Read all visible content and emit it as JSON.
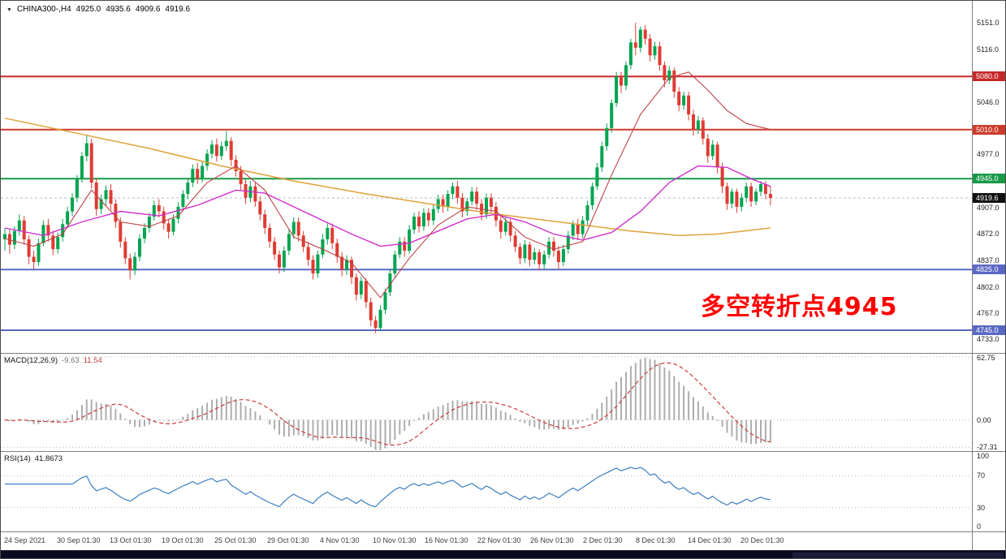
{
  "window": {
    "dropdown_icon": "▼",
    "symbol_info": {
      "symbol": "CHINA300-,H4",
      "open": "4925.0",
      "high": "4935.6",
      "low": "4909.6",
      "close": "4919.6"
    }
  },
  "annotation": {
    "text": "多空转折点4945",
    "color": "#FF0000"
  },
  "main_panel": {
    "axis_ticks": [
      "5151.0",
      "5116.0",
      "5046.0",
      "4977.0",
      "4907.0",
      "4872.0",
      "4837.0",
      "4802.0",
      "4767.0",
      "4733.0"
    ],
    "price_lines": [
      {
        "value": 5080.0,
        "label": "5080.0",
        "color": "#c62828"
      },
      {
        "value": 5010.0,
        "label": "5010.0",
        "color": "#cd3b2a"
      },
      {
        "value": 4945.0,
        "label": "4945.0",
        "color": "#169a47"
      },
      {
        "value": 4825.0,
        "label": "4825.0",
        "color": "#5a68c4"
      },
      {
        "value": 4745.0,
        "label": "4745.0",
        "color": "#5a68c4"
      }
    ],
    "current_price": {
      "value": 4919.6,
      "label": "4919.6",
      "color": "#111111"
    }
  },
  "macd_panel": {
    "label": "MACD(12,26,9)",
    "value_main": "-9.63",
    "value_signal": "11.54",
    "range": [
      -31,
      66
    ],
    "axis_ticks": [
      {
        "value": 62.75,
        "label": "62.75"
      },
      {
        "value": 0,
        "label": "0.00"
      },
      {
        "value": -27.31,
        "label": "-27.31"
      }
    ]
  },
  "rsi_panel": {
    "label": "RSI(14)",
    "value": "41.8673",
    "levels": [
      70,
      30
    ],
    "axis_ticks": [
      {
        "value": 100,
        "label": "100"
      },
      {
        "value": 70,
        "label": "70"
      },
      {
        "value": 30,
        "label": "30"
      },
      {
        "value": 0,
        "label": "0"
      }
    ]
  },
  "x_axis": {
    "labels": [
      "24 Sep 2021",
      "30 Sep 01:30",
      "13 Oct 01:30",
      "19 Oct 01:30",
      "25 Oct 01:30",
      "29 Oct 01:30",
      "4 Nov 01:30",
      "10 Nov 01:30",
      "16 Nov 01:30",
      "22 Nov 01:30",
      "26 Nov 01:30",
      "2 Dec 01:30",
      "8 Dec 01:30",
      "14 Dec 01:30",
      "20 Dec 01:30"
    ]
  },
  "chart_data": {
    "type": "candlestick",
    "symbol": "CHINA300-",
    "timeframe": "H4",
    "title": "CHINA300-,H4",
    "price_range": [
      4715,
      5180
    ],
    "colors": {
      "up": "#00a44f",
      "down": "#df3b33",
      "macd_hist": "#adadad",
      "macd_signal": "#cc3b3b",
      "rsi_line": "#3a7fc1",
      "grid_dot": "#b8b8b8",
      "current_price_line": "#bbbbbb"
    },
    "ohlc": [
      [
        4865,
        4880,
        4850,
        4872
      ],
      [
        4872,
        4878,
        4846,
        4858
      ],
      [
        4858,
        4882,
        4852,
        4876
      ],
      [
        4876,
        4898,
        4870,
        4890
      ],
      [
        4890,
        4896,
        4858,
        4865
      ],
      [
        4865,
        4870,
        4832,
        4842
      ],
      [
        4842,
        4850,
        4826,
        4835
      ],
      [
        4835,
        4866,
        4830,
        4860
      ],
      [
        4860,
        4890,
        4856,
        4884
      ],
      [
        4884,
        4892,
        4862,
        4870
      ],
      [
        4870,
        4876,
        4844,
        4852
      ],
      [
        4852,
        4874,
        4846,
        4868
      ],
      [
        4868,
        4892,
        4862,
        4885
      ],
      [
        4885,
        4908,
        4880,
        4902
      ],
      [
        4902,
        4926,
        4896,
        4920
      ],
      [
        4920,
        4950,
        4914,
        4945
      ],
      [
        4945,
        4980,
        4940,
        4975
      ],
      [
        4975,
        5002,
        4968,
        4992
      ],
      [
        4992,
        4998,
        4932,
        4940
      ],
      [
        4940,
        4946,
        4896,
        4905
      ],
      [
        4905,
        4924,
        4898,
        4918
      ],
      [
        4918,
        4936,
        4910,
        4930
      ],
      [
        4930,
        4938,
        4904,
        4912
      ],
      [
        4912,
        4918,
        4880,
        4888
      ],
      [
        4888,
        4894,
        4854,
        4862
      ],
      [
        4862,
        4868,
        4832,
        4840
      ],
      [
        4840,
        4846,
        4812,
        4824
      ],
      [
        4824,
        4848,
        4818,
        4842
      ],
      [
        4842,
        4872,
        4836,
        4866
      ],
      [
        4866,
        4886,
        4860,
        4880
      ],
      [
        4880,
        4900,
        4874,
        4895
      ],
      [
        4895,
        4916,
        4890,
        4910
      ],
      [
        4910,
        4918,
        4894,
        4902
      ],
      [
        4902,
        4908,
        4878,
        4886
      ],
      [
        4886,
        4892,
        4866,
        4875
      ],
      [
        4875,
        4898,
        4870,
        4892
      ],
      [
        4892,
        4914,
        4886,
        4908
      ],
      [
        4908,
        4930,
        4902,
        4925
      ],
      [
        4925,
        4946,
        4918,
        4940
      ],
      [
        4940,
        4964,
        4934,
        4958
      ],
      [
        4958,
        4966,
        4938,
        4945
      ],
      [
        4945,
        4968,
        4940,
        4962
      ],
      [
        4962,
        4984,
        4956,
        4978
      ],
      [
        4978,
        4996,
        4972,
        4990
      ],
      [
        4990,
        4998,
        4968,
        4975
      ],
      [
        4975,
        4994,
        4970,
        4988
      ],
      [
        4988,
        5008,
        4982,
        4995
      ],
      [
        4995,
        5000,
        4962,
        4970
      ],
      [
        4970,
        4976,
        4948,
        4955
      ],
      [
        4955,
        4962,
        4930,
        4938
      ],
      [
        4938,
        4944,
        4912,
        4920
      ],
      [
        4920,
        4942,
        4914,
        4935
      ],
      [
        4935,
        4940,
        4908,
        4915
      ],
      [
        4915,
        4922,
        4890,
        4898
      ],
      [
        4898,
        4904,
        4872,
        4880
      ],
      [
        4880,
        4886,
        4854,
        4862
      ],
      [
        4862,
        4868,
        4838,
        4845
      ],
      [
        4845,
        4850,
        4820,
        4828
      ],
      [
        4828,
        4856,
        4822,
        4850
      ],
      [
        4850,
        4878,
        4844,
        4872
      ],
      [
        4872,
        4894,
        4866,
        4888
      ],
      [
        4888,
        4894,
        4862,
        4870
      ],
      [
        4870,
        4876,
        4848,
        4855
      ],
      [
        4855,
        4862,
        4830,
        4838
      ],
      [
        4838,
        4844,
        4812,
        4820
      ],
      [
        4820,
        4850,
        4814,
        4845
      ],
      [
        4845,
        4872,
        4840,
        4865
      ],
      [
        4865,
        4886,
        4858,
        4880
      ],
      [
        4880,
        4886,
        4852,
        4860
      ],
      [
        4860,
        4866,
        4834,
        4842
      ],
      [
        4842,
        4848,
        4816,
        4825
      ],
      [
        4825,
        4844,
        4818,
        4838
      ],
      [
        4838,
        4842,
        4806,
        4815
      ],
      [
        4815,
        4820,
        4784,
        4792
      ],
      [
        4792,
        4816,
        4786,
        4810
      ],
      [
        4810,
        4814,
        4774,
        4782
      ],
      [
        4782,
        4788,
        4750,
        4758
      ],
      [
        4758,
        4764,
        4741,
        4748
      ],
      [
        4748,
        4778,
        4744,
        4772
      ],
      [
        4772,
        4800,
        4766,
        4795
      ],
      [
        4795,
        4826,
        4790,
        4820
      ],
      [
        4820,
        4850,
        4814,
        4845
      ],
      [
        4845,
        4868,
        4840,
        4862
      ],
      [
        4862,
        4868,
        4842,
        4850
      ],
      [
        4850,
        4884,
        4846,
        4878
      ],
      [
        4878,
        4900,
        4872,
        4895
      ],
      [
        4895,
        4902,
        4874,
        4882
      ],
      [
        4882,
        4906,
        4876,
        4900
      ],
      [
        4900,
        4906,
        4882,
        4890
      ],
      [
        4890,
        4912,
        4884,
        4905
      ],
      [
        4905,
        4924,
        4900,
        4918
      ],
      [
        4918,
        4924,
        4900,
        4908
      ],
      [
        4908,
        4930,
        4902,
        4925
      ],
      [
        4925,
        4940,
        4918,
        4935
      ],
      [
        4935,
        4942,
        4912,
        4920
      ],
      [
        4920,
        4926,
        4894,
        4902
      ],
      [
        4902,
        4920,
        4896,
        4915
      ],
      [
        4915,
        4934,
        4910,
        4928
      ],
      [
        4928,
        4934,
        4904,
        4912
      ],
      [
        4912,
        4918,
        4890,
        4898
      ],
      [
        4898,
        4926,
        4892,
        4920
      ],
      [
        4920,
        4926,
        4900,
        4908
      ],
      [
        4908,
        4914,
        4882,
        4890
      ],
      [
        4890,
        4896,
        4866,
        4875
      ],
      [
        4875,
        4894,
        4870,
        4888
      ],
      [
        4888,
        4892,
        4862,
        4870
      ],
      [
        4870,
        4876,
        4848,
        4855
      ],
      [
        4855,
        4860,
        4832,
        4840
      ],
      [
        4840,
        4864,
        4834,
        4858
      ],
      [
        4858,
        4862,
        4830,
        4838
      ],
      [
        4838,
        4854,
        4832,
        4848
      ],
      [
        4848,
        4852,
        4824,
        4832
      ],
      [
        4832,
        4850,
        4826,
        4845
      ],
      [
        4845,
        4868,
        4840,
        4862
      ],
      [
        4862,
        4868,
        4842,
        4850
      ],
      [
        4850,
        4856,
        4826,
        4835
      ],
      [
        4835,
        4858,
        4830,
        4852
      ],
      [
        4852,
        4876,
        4846,
        4870
      ],
      [
        4870,
        4890,
        4864,
        4885
      ],
      [
        4885,
        4892,
        4864,
        4872
      ],
      [
        4872,
        4896,
        4866,
        4890
      ],
      [
        4890,
        4916,
        4884,
        4910
      ],
      [
        4910,
        4940,
        4904,
        4935
      ],
      [
        4935,
        4966,
        4930,
        4960
      ],
      [
        4960,
        4994,
        4954,
        4988
      ],
      [
        4988,
        5018,
        4982,
        5012
      ],
      [
        5012,
        5050,
        5006,
        5045
      ],
      [
        5045,
        5086,
        5040,
        5080
      ],
      [
        5080,
        5086,
        5058,
        5068
      ],
      [
        5068,
        5100,
        5062,
        5095
      ],
      [
        5095,
        5130,
        5090,
        5125
      ],
      [
        5125,
        5151,
        5108,
        5118
      ],
      [
        5118,
        5146,
        5112,
        5142
      ],
      [
        5142,
        5148,
        5122,
        5130
      ],
      [
        5130,
        5136,
        5100,
        5108
      ],
      [
        5108,
        5126,
        5102,
        5120
      ],
      [
        5120,
        5126,
        5088,
        5095
      ],
      [
        5095,
        5100,
        5066,
        5075
      ],
      [
        5075,
        5094,
        5070,
        5088
      ],
      [
        5088,
        5092,
        5052,
        5060
      ],
      [
        5060,
        5066,
        5034,
        5042
      ],
      [
        5042,
        5060,
        5036,
        5055
      ],
      [
        5055,
        5060,
        5022,
        5030
      ],
      [
        5030,
        5036,
        5002,
        5010
      ],
      [
        5010,
        5028,
        5004,
        5022
      ],
      [
        5022,
        5026,
        4990,
        4998
      ],
      [
        4998,
        5004,
        4966,
        4975
      ],
      [
        4975,
        4996,
        4970,
        4990
      ],
      [
        4990,
        4994,
        4952,
        4960
      ],
      [
        4960,
        4966,
        4926,
        4935
      ],
      [
        4935,
        4940,
        4904,
        4912
      ],
      [
        4912,
        4932,
        4906,
        4928
      ],
      [
        4928,
        4932,
        4900,
        4908
      ],
      [
        4908,
        4926,
        4902,
        4920
      ],
      [
        4920,
        4940,
        4914,
        4935
      ],
      [
        4935,
        4940,
        4908,
        4915
      ],
      [
        4915,
        4932,
        4910,
        4928
      ],
      [
        4928,
        4942,
        4922,
        4938
      ],
      [
        4938,
        4942,
        4918,
        4925
      ],
      [
        4925,
        4935.6,
        4909.6,
        4919.6
      ]
    ],
    "overlays": [
      {
        "name": "ma-slow-orange",
        "color": "#e0a13a",
        "width": 1.5,
        "anchors": [
          [
            0,
            5025
          ],
          [
            15,
            5005
          ],
          [
            30,
            4985
          ],
          [
            45,
            4962
          ],
          [
            60,
            4942
          ],
          [
            75,
            4925
          ],
          [
            90,
            4910
          ],
          [
            100,
            4900
          ],
          [
            110,
            4892
          ],
          [
            120,
            4884
          ],
          [
            130,
            4876
          ],
          [
            140,
            4870
          ],
          [
            148,
            4872
          ],
          [
            159,
            4880
          ]
        ]
      },
      {
        "name": "ma-mid-magenta",
        "color": "#cf2fcf",
        "width": 1.4,
        "anchors": [
          [
            0,
            4880
          ],
          [
            8,
            4870
          ],
          [
            16,
            4888
          ],
          [
            24,
            4902
          ],
          [
            32,
            4896
          ],
          [
            40,
            4910
          ],
          [
            48,
            4930
          ],
          [
            54,
            4926
          ],
          [
            60,
            4908
          ],
          [
            66,
            4890
          ],
          [
            72,
            4872
          ],
          [
            78,
            4856
          ],
          [
            84,
            4860
          ],
          [
            90,
            4876
          ],
          [
            96,
            4892
          ],
          [
            102,
            4898
          ],
          [
            108,
            4888
          ],
          [
            114,
            4872
          ],
          [
            120,
            4864
          ],
          [
            126,
            4874
          ],
          [
            132,
            4902
          ],
          [
            138,
            4940
          ],
          [
            144,
            4962
          ],
          [
            150,
            4960
          ],
          [
            155,
            4945
          ],
          [
            159,
            4935
          ]
        ]
      },
      {
        "name": "ma-fast-crimson",
        "color": "#bf4045",
        "width": 1.1,
        "anchors": [
          [
            0,
            4866
          ],
          [
            6,
            4856
          ],
          [
            12,
            4872
          ],
          [
            18,
            4930
          ],
          [
            24,
            4888
          ],
          [
            30,
            4882
          ],
          [
            36,
            4896
          ],
          [
            42,
            4940
          ],
          [
            48,
            4962
          ],
          [
            54,
            4930
          ],
          [
            60,
            4868
          ],
          [
            66,
            4852
          ],
          [
            72,
            4834
          ],
          [
            78,
            4788
          ],
          [
            84,
            4840
          ],
          [
            90,
            4884
          ],
          [
            96,
            4908
          ],
          [
            102,
            4902
          ],
          [
            108,
            4868
          ],
          [
            114,
            4852
          ],
          [
            120,
            4862
          ],
          [
            126,
            4950
          ],
          [
            132,
            5030
          ],
          [
            138,
            5078
          ],
          [
            142,
            5086
          ],
          [
            146,
            5062
          ],
          [
            150,
            5035
          ],
          [
            154,
            5018
          ],
          [
            159,
            5010
          ]
        ]
      }
    ],
    "indicators": [
      {
        "type": "macd",
        "fast": 12,
        "slow": 26,
        "signal": 9,
        "current_main": -9.63,
        "current_signal": 11.54,
        "axis_range": [
          -27.31,
          62.75
        ]
      },
      {
        "type": "rsi",
        "period": 14,
        "current": 41.8673,
        "axis_range": [
          0,
          100
        ]
      }
    ]
  }
}
